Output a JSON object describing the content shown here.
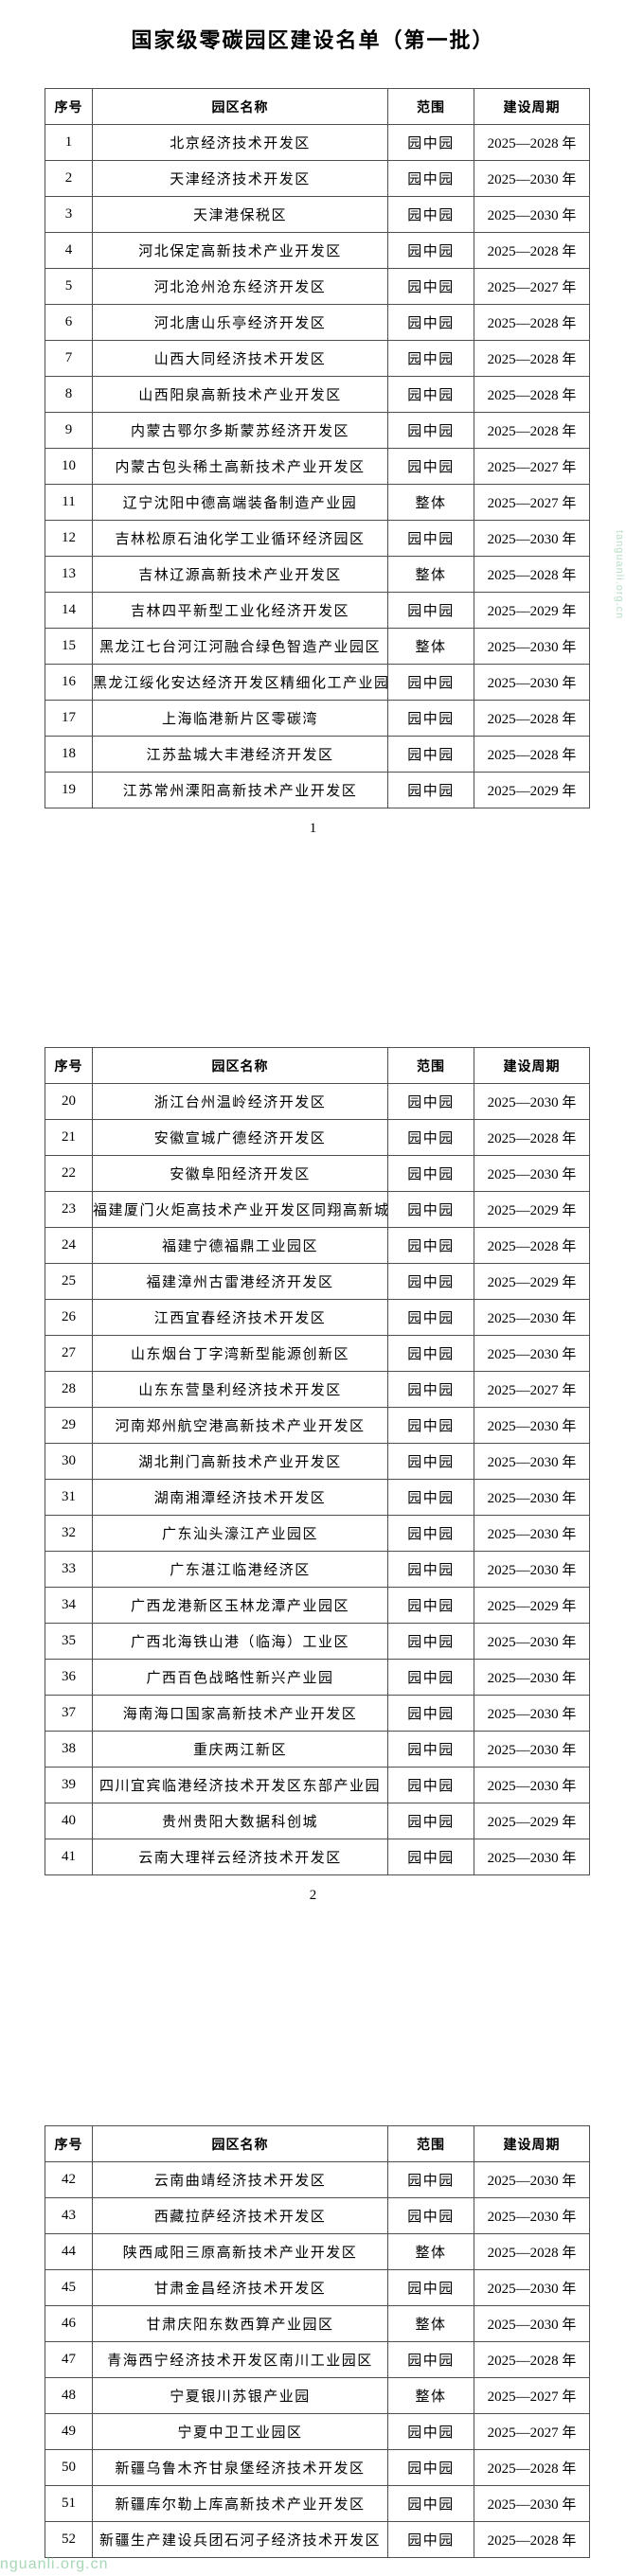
{
  "document": {
    "title": "国家级零碳园区建设名单（第一批）",
    "table_columns": [
      "序号",
      "园区名称",
      "范围",
      "建设周期"
    ],
    "pages": [
      {
        "page_number": "1",
        "rows": [
          [
            "1",
            "北京经济技术开发区",
            "园中园",
            "2025—2028 年"
          ],
          [
            "2",
            "天津经济技术开发区",
            "园中园",
            "2025—2030 年"
          ],
          [
            "3",
            "天津港保税区",
            "园中园",
            "2025—2030 年"
          ],
          [
            "4",
            "河北保定高新技术产业开发区",
            "园中园",
            "2025—2028 年"
          ],
          [
            "5",
            "河北沧州沧东经济开发区",
            "园中园",
            "2025—2027 年"
          ],
          [
            "6",
            "河北唐山乐亭经济开发区",
            "园中园",
            "2025—2028 年"
          ],
          [
            "7",
            "山西大同经济技术开发区",
            "园中园",
            "2025—2028 年"
          ],
          [
            "8",
            "山西阳泉高新技术产业开发区",
            "园中园",
            "2025—2028 年"
          ],
          [
            "9",
            "内蒙古鄂尔多斯蒙苏经济开发区",
            "园中园",
            "2025—2028 年"
          ],
          [
            "10",
            "内蒙古包头稀土高新技术产业开发区",
            "园中园",
            "2025—2027 年"
          ],
          [
            "11",
            "辽宁沈阳中德高端装备制造产业园",
            "整体",
            "2025—2027 年"
          ],
          [
            "12",
            "吉林松原石油化学工业循环经济园区",
            "园中园",
            "2025—2030 年"
          ],
          [
            "13",
            "吉林辽源高新技术产业开发区",
            "整体",
            "2025—2028 年"
          ],
          [
            "14",
            "吉林四平新型工业化经济开发区",
            "园中园",
            "2025—2029 年"
          ],
          [
            "15",
            "黑龙江七台河江河融合绿色智造产业园区",
            "整体",
            "2025—2030 年"
          ],
          [
            "16",
            "黑龙江绥化安达经济开发区精细化工产业园",
            "园中园",
            "2025—2030 年"
          ],
          [
            "17",
            "上海临港新片区零碳湾",
            "园中园",
            "2025—2028 年"
          ],
          [
            "18",
            "江苏盐城大丰港经济开发区",
            "园中园",
            "2025—2028 年"
          ],
          [
            "19",
            "江苏常州溧阳高新技术产业开发区",
            "园中园",
            "2025—2029 年"
          ]
        ]
      },
      {
        "page_number": "2",
        "rows": [
          [
            "20",
            "浙江台州温岭经济开发区",
            "园中园",
            "2025—2030 年"
          ],
          [
            "21",
            "安徽宣城广德经济开发区",
            "园中园",
            "2025—2028 年"
          ],
          [
            "22",
            "安徽阜阳经济开发区",
            "园中园",
            "2025—2030 年"
          ],
          [
            "23",
            "福建厦门火炬高技术产业开发区同翔高新城",
            "园中园",
            "2025—2029 年"
          ],
          [
            "24",
            "福建宁德福鼎工业园区",
            "园中园",
            "2025—2028 年"
          ],
          [
            "25",
            "福建漳州古雷港经济开发区",
            "园中园",
            "2025—2029 年"
          ],
          [
            "26",
            "江西宜春经济技术开发区",
            "园中园",
            "2025—2030 年"
          ],
          [
            "27",
            "山东烟台丁字湾新型能源创新区",
            "园中园",
            "2025—2030 年"
          ],
          [
            "28",
            "山东东营垦利经济技术开发区",
            "园中园",
            "2025—2027 年"
          ],
          [
            "29",
            "河南郑州航空港高新技术产业开发区",
            "园中园",
            "2025—2030 年"
          ],
          [
            "30",
            "湖北荆门高新技术产业开发区",
            "园中园",
            "2025—2030 年"
          ],
          [
            "31",
            "湖南湘潭经济技术开发区",
            "园中园",
            "2025—2030 年"
          ],
          [
            "32",
            "广东汕头濠江产业园区",
            "园中园",
            "2025—2030 年"
          ],
          [
            "33",
            "广东湛江临港经济区",
            "园中园",
            "2025—2030 年"
          ],
          [
            "34",
            "广西龙港新区玉林龙潭产业园区",
            "园中园",
            "2025—2029 年"
          ],
          [
            "35",
            "广西北海铁山港（临海）工业区",
            "园中园",
            "2025—2030 年"
          ],
          [
            "36",
            "广西百色战略性新兴产业园",
            "园中园",
            "2025—2030 年"
          ],
          [
            "37",
            "海南海口国家高新技术产业开发区",
            "园中园",
            "2025—2030 年"
          ],
          [
            "38",
            "重庆两江新区",
            "园中园",
            "2025—2030 年"
          ],
          [
            "39",
            "四川宜宾临港经济技术开发区东部产业园",
            "园中园",
            "2025—2030 年"
          ],
          [
            "40",
            "贵州贵阳大数据科创城",
            "园中园",
            "2025—2029 年"
          ],
          [
            "41",
            "云南大理祥云经济技术开发区",
            "园中园",
            "2025—2030 年"
          ]
        ]
      },
      {
        "page_number": "",
        "rows": [
          [
            "42",
            "云南曲靖经济技术开发区",
            "园中园",
            "2025—2030 年"
          ],
          [
            "43",
            "西藏拉萨经济技术开发区",
            "园中园",
            "2025—2030 年"
          ],
          [
            "44",
            "陕西咸阳三原高新技术产业开发区",
            "整体",
            "2025—2028 年"
          ],
          [
            "45",
            "甘肃金昌经济技术开发区",
            "园中园",
            "2025—2030 年"
          ],
          [
            "46",
            "甘肃庆阳东数西算产业园区",
            "整体",
            "2025—2030 年"
          ],
          [
            "47",
            "青海西宁经济技术开发区南川工业园区",
            "园中园",
            "2025—2028 年"
          ],
          [
            "48",
            "宁夏银川苏银产业园",
            "整体",
            "2025—2027 年"
          ],
          [
            "49",
            "宁夏中卫工业园区",
            "园中园",
            "2025—2027 年"
          ],
          [
            "50",
            "新疆乌鲁木齐甘泉堡经济技术开发区",
            "园中园",
            "2025—2028 年"
          ],
          [
            "51",
            "新疆库尔勒上库高新技术产业开发区",
            "园中园",
            "2025—2030 年"
          ],
          [
            "52",
            "新疆生产建设兵团石河子经济技术开发区",
            "园中园",
            "2025—2028 年"
          ]
        ]
      }
    ],
    "watermarks": {
      "right_edge": "tanguanli.org.cn",
      "bottom_left": "nguanli.org.cn"
    }
  }
}
